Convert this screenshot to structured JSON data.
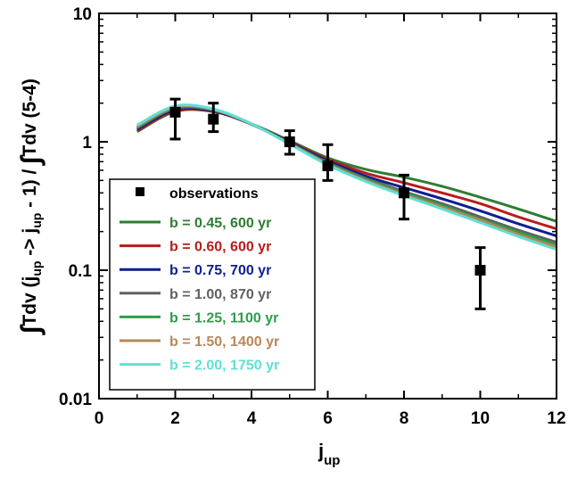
{
  "chart_data": {
    "type": "line",
    "xlabel": {
      "main": "j",
      "sub": "up"
    },
    "ylabel": {
      "integral1": "∫",
      "part1": "Tdv (j",
      "sub1": "up",
      "part2": " -> j",
      "sub2": "up",
      "part3": " - 1) / ",
      "integral2": "∫",
      "part4": "Tdv (5-4)"
    },
    "xlim": [
      0,
      12
    ],
    "ylim": [
      0.01,
      10
    ],
    "yscale": "log",
    "x_ticks": [
      "0",
      "2",
      "4",
      "6",
      "8",
      "10",
      "12"
    ],
    "y_ticks": [
      "0.01",
      "0.1",
      "1",
      "10"
    ],
    "legend_position": "bottom-left",
    "observations": {
      "name": "observations",
      "x": [
        2,
        3,
        5,
        6,
        8,
        10
      ],
      "y": [
        1.7,
        1.5,
        1.0,
        0.65,
        0.4,
        0.1
      ],
      "y_err_low": [
        1.05,
        1.2,
        0.8,
        0.5,
        0.25,
        0.05
      ],
      "y_err_high": [
        2.15,
        2.0,
        1.22,
        0.95,
        0.55,
        0.15
      ]
    },
    "series": [
      {
        "name": "b = 0.45, 600 yr",
        "color": "#2e7d32",
        "x": [
          1,
          2,
          3,
          4,
          5,
          6,
          7,
          8,
          9,
          10,
          11,
          12
        ],
        "y": [
          1.2,
          1.72,
          1.72,
          1.38,
          1.02,
          0.75,
          0.61,
          0.53,
          0.45,
          0.37,
          0.3,
          0.24
        ]
      },
      {
        "name": "b = 0.60, 600 yr",
        "color": "#b71c1c",
        "x": [
          1,
          2,
          3,
          4,
          5,
          6,
          7,
          8,
          9,
          10,
          11,
          12
        ],
        "y": [
          1.22,
          1.74,
          1.72,
          1.37,
          1.0,
          0.73,
          0.57,
          0.48,
          0.4,
          0.33,
          0.26,
          0.21
        ]
      },
      {
        "name": "b = 0.75, 700 yr",
        "color": "#0d1f8f",
        "x": [
          1,
          2,
          3,
          4,
          5,
          6,
          7,
          8,
          9,
          10,
          11,
          12
        ],
        "y": [
          1.25,
          1.78,
          1.74,
          1.37,
          0.99,
          0.71,
          0.54,
          0.44,
          0.36,
          0.29,
          0.23,
          0.185
        ]
      },
      {
        "name": "b = 1.00, 870 yr",
        "color": "#616161",
        "x": [
          1,
          2,
          3,
          4,
          5,
          6,
          7,
          8,
          9,
          10,
          11,
          12
        ],
        "y": [
          1.28,
          1.82,
          1.76,
          1.37,
          0.98,
          0.69,
          0.52,
          0.41,
          0.33,
          0.26,
          0.205,
          0.165
        ]
      },
      {
        "name": "b = 1.25, 1100 yr",
        "color": "#2e9d4a",
        "x": [
          1,
          2,
          3,
          4,
          5,
          6,
          7,
          8,
          9,
          10,
          11,
          12
        ],
        "y": [
          1.3,
          1.85,
          1.78,
          1.38,
          0.97,
          0.68,
          0.51,
          0.4,
          0.32,
          0.25,
          0.198,
          0.158
        ]
      },
      {
        "name": "b = 1.50, 1400 yr",
        "color": "#b8875a",
        "x": [
          1,
          2,
          3,
          4,
          5,
          6,
          7,
          8,
          9,
          10,
          11,
          12
        ],
        "y": [
          1.32,
          1.87,
          1.79,
          1.38,
          0.965,
          0.67,
          0.5,
          0.39,
          0.31,
          0.245,
          0.19,
          0.152
        ]
      },
      {
        "name": "b = 2.00, 1750 yr",
        "color": "#5ee0d6",
        "x": [
          1,
          2,
          3,
          4,
          5,
          6,
          7,
          8,
          9,
          10,
          11,
          12
        ],
        "y": [
          1.35,
          1.9,
          1.8,
          1.38,
          0.96,
          0.66,
          0.49,
          0.38,
          0.3,
          0.235,
          0.183,
          0.145
        ]
      }
    ]
  }
}
